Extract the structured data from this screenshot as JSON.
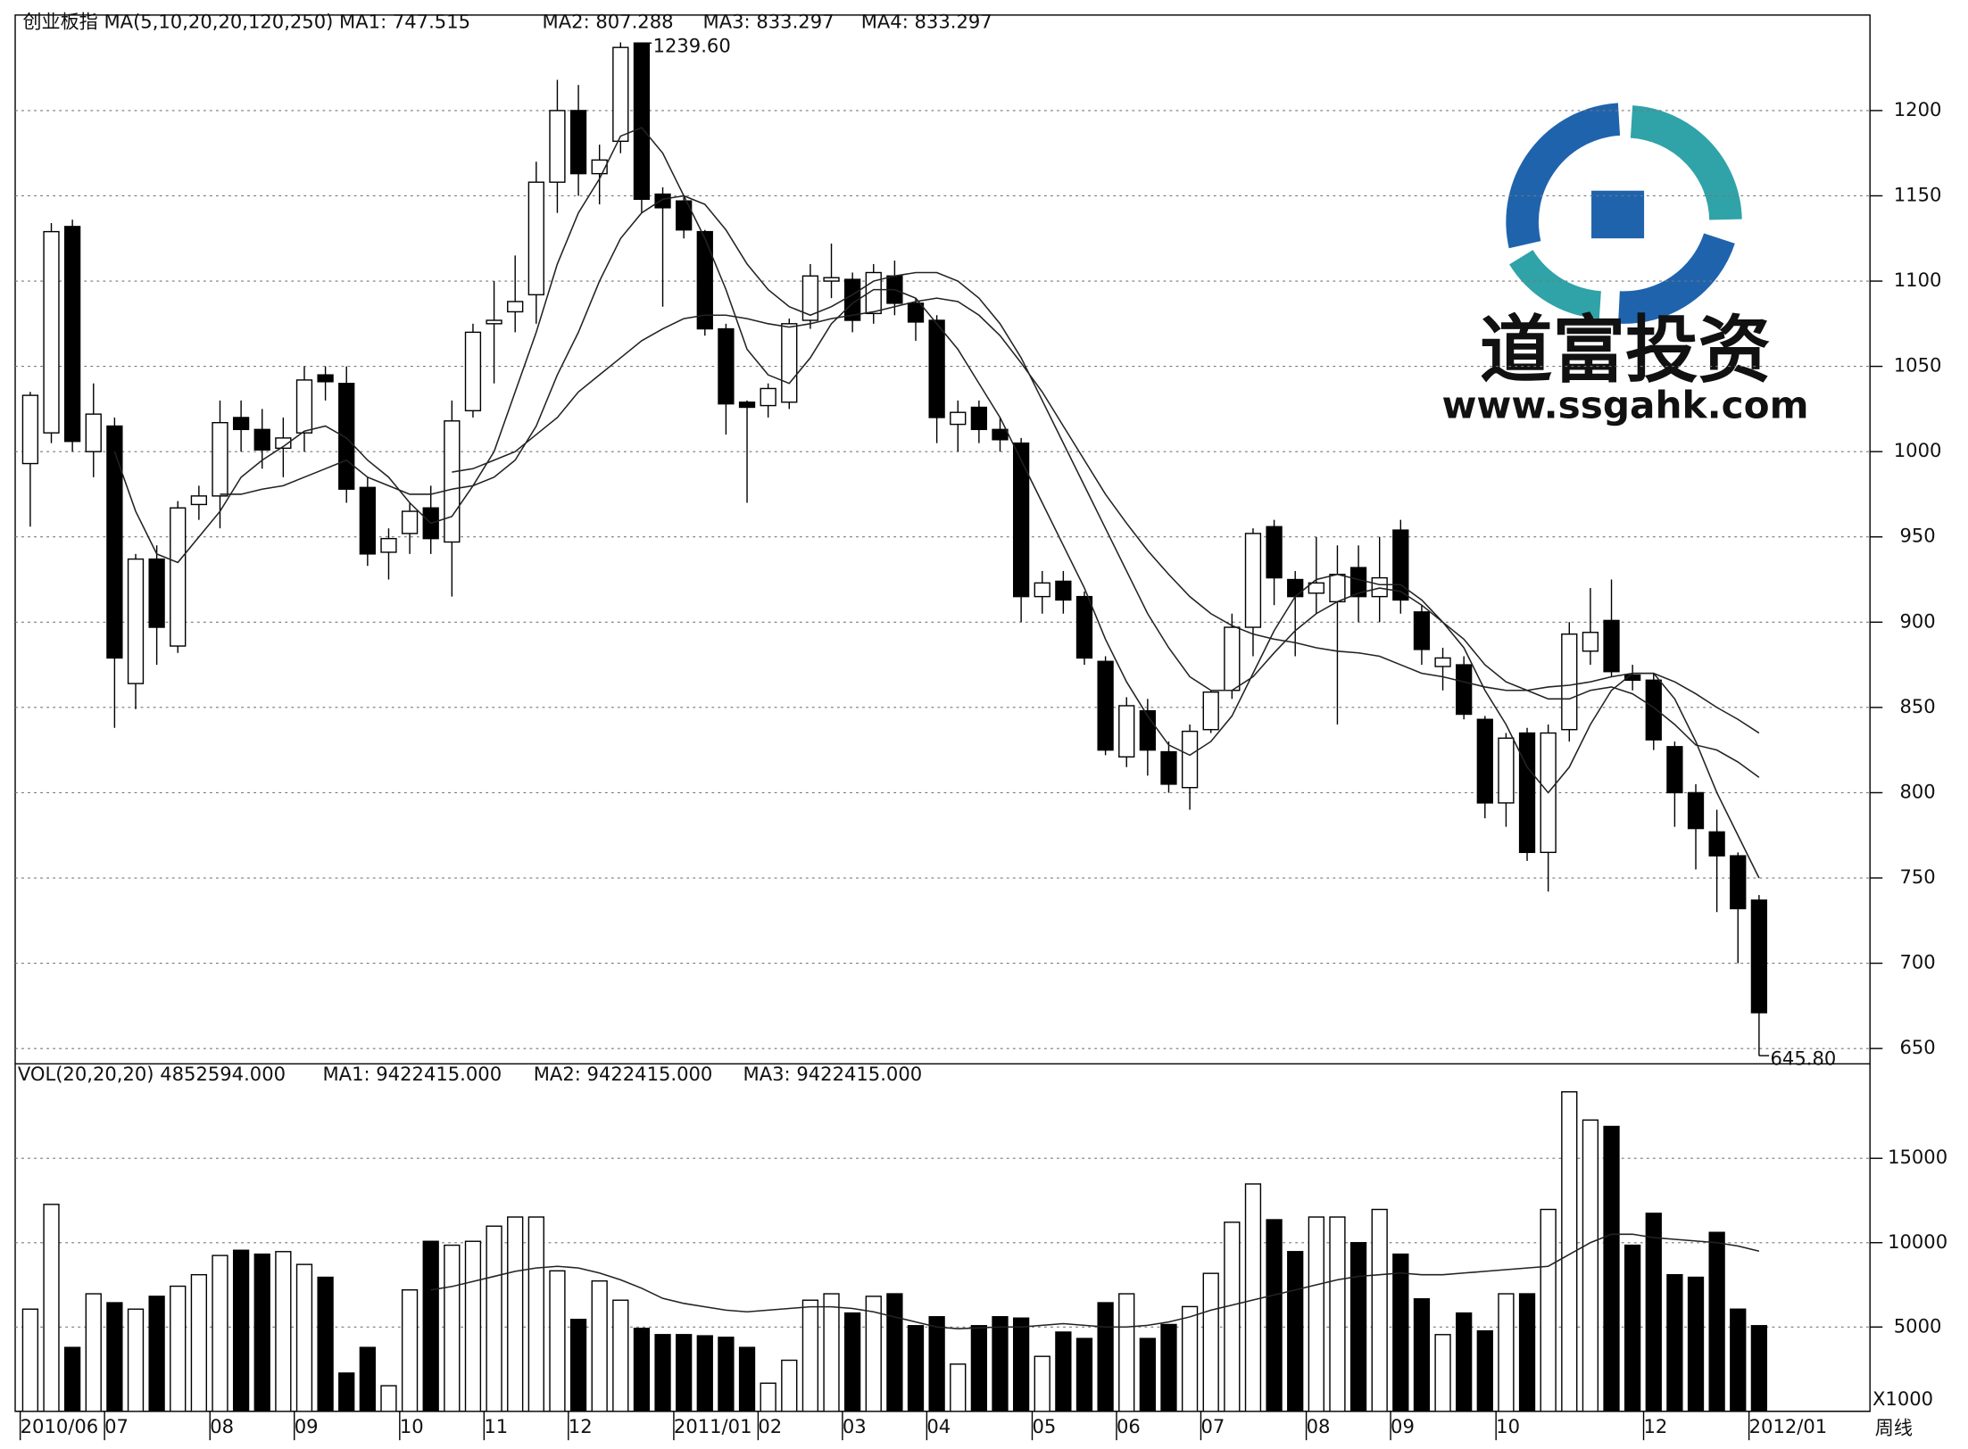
{
  "chart_data": [
    {
      "type": "candlestick",
      "title_texts": [
        "创业板指 MA(5,10,20,20,120,250) MA1: 747.515",
        "MA2: 807.288",
        "MA3: 833.297",
        "MA4: 833.297"
      ],
      "open": [
        993,
        1011,
        1132,
        1000,
        1015,
        864,
        937,
        886,
        969,
        974,
        1020,
        1013,
        1002,
        1011,
        1045,
        1040,
        979,
        941,
        952,
        967,
        947,
        1024,
        1075,
        1082,
        1092,
        1158,
        1200,
        1163,
        1182,
        1239.6,
        1151,
        1147,
        1129,
        1072,
        1029,
        1027,
        1029,
        1077,
        1100,
        1101,
        1081,
        1103,
        1087,
        1077,
        1016,
        1026,
        1013,
        1005,
        915,
        924,
        915,
        877,
        821,
        848,
        824,
        803,
        837,
        860,
        897,
        956,
        925,
        917,
        912,
        932,
        915,
        954,
        906,
        874,
        875,
        843,
        794,
        835,
        765,
        837,
        883,
        901,
        869,
        866,
        827,
        800,
        777,
        763,
        737
      ],
      "high": [
        1035,
        1134,
        1136,
        1040,
        1020,
        940,
        945,
        971,
        980,
        1030,
        1030,
        1025,
        1020,
        1050,
        1050,
        1050,
        985,
        955,
        970,
        980,
        1030,
        1075,
        1100,
        1115,
        1170,
        1218,
        1215,
        1180,
        1240,
        1239.6,
        1155,
        1150,
        1130,
        1075,
        1030,
        1040,
        1078,
        1110,
        1122,
        1105,
        1110,
        1112,
        1090,
        1080,
        1030,
        1030,
        1020,
        1008,
        930,
        930,
        918,
        880,
        856,
        855,
        830,
        840,
        860,
        905,
        955,
        960,
        930,
        950,
        945,
        945,
        950,
        960,
        910,
        885,
        880,
        845,
        835,
        838,
        840,
        900,
        920,
        925,
        875,
        870,
        830,
        805,
        790,
        765,
        740
      ],
      "low": [
        956,
        1005,
        1000,
        985,
        838,
        849,
        875,
        882,
        960,
        955,
        1000,
        990,
        985,
        1000,
        1030,
        970,
        933,
        925,
        940,
        940,
        915,
        1020,
        1040,
        1070,
        1075,
        1140,
        1150,
        1145,
        1175,
        1140,
        1085,
        1125,
        1068,
        1010,
        970,
        1020,
        1025,
        1072,
        1090,
        1070,
        1075,
        1080,
        1065,
        1005,
        1000,
        1005,
        1000,
        900,
        905,
        905,
        875,
        822,
        815,
        810,
        800,
        790,
        835,
        855,
        880,
        910,
        880,
        905,
        840,
        900,
        900,
        905,
        875,
        860,
        843,
        785,
        780,
        760,
        742,
        830,
        875,
        868,
        860,
        825,
        780,
        755,
        730,
        700,
        645.8
      ],
      "close": [
        1033,
        1129,
        1006,
        1022,
        879,
        937,
        897,
        967,
        974,
        1017,
        1013,
        1001,
        1008,
        1042,
        1041,
        978,
        940,
        949,
        965,
        949,
        1018,
        1070,
        1077,
        1088,
        1158,
        1200,
        1163,
        1171,
        1237,
        1148,
        1143,
        1130,
        1072,
        1028,
        1026,
        1037,
        1075,
        1103,
        1102,
        1077,
        1105,
        1087,
        1076,
        1020,
        1023,
        1013,
        1007,
        915,
        923,
        913,
        879,
        825,
        851,
        825,
        805,
        836,
        859,
        897,
        952,
        926,
        915,
        923,
        928,
        915,
        926,
        913,
        884,
        879,
        846,
        794,
        832,
        765,
        835,
        893,
        894,
        871,
        866,
        831,
        800,
        779,
        763,
        732,
        671
      ],
      "lines": [
        {
          "values": [
            null,
            null,
            null,
            null,
            1000,
            965,
            940,
            935,
            950,
            965,
            985,
            995,
            1003,
            1012,
            1015,
            1008,
            995,
            985,
            970,
            958,
            962,
            980,
            1000,
            1035,
            1070,
            1110,
            1140,
            1160,
            1185,
            1190,
            1175,
            1150,
            1125,
            1095,
            1060,
            1045,
            1040,
            1055,
            1075,
            1087,
            1095,
            1095,
            1090,
            1075,
            1060,
            1040,
            1020,
            995,
            970,
            945,
            920,
            890,
            865,
            845,
            828,
            822,
            830,
            845,
            870,
            895,
            915,
            925,
            928,
            925,
            922,
            922,
            913,
            900,
            885,
            860,
            840,
            815,
            800,
            815,
            840,
            860,
            870,
            870,
            855,
            830,
            800,
            775,
            750
          ]
        },
        {
          "values": [
            null,
            null,
            null,
            null,
            null,
            null,
            null,
            null,
            null,
            975,
            975,
            978,
            980,
            985,
            990,
            995,
            985,
            980,
            975,
            975,
            978,
            980,
            985,
            995,
            1015,
            1045,
            1070,
            1100,
            1125,
            1140,
            1148,
            1150,
            1145,
            1130,
            1110,
            1095,
            1085,
            1080,
            1085,
            1092,
            1100,
            1103,
            1105,
            1105,
            1100,
            1090,
            1075,
            1055,
            1030,
            1005,
            980,
            955,
            930,
            905,
            885,
            868,
            860,
            860,
            868,
            882,
            895,
            905,
            912,
            917,
            920,
            918,
            910,
            900,
            890,
            875,
            865,
            860,
            855,
            855,
            860,
            862,
            858,
            850,
            840,
            828,
            825,
            818,
            809
          ]
        },
        {
          "values": [
            null,
            null,
            null,
            null,
            null,
            null,
            null,
            null,
            null,
            null,
            null,
            null,
            null,
            null,
            null,
            null,
            null,
            null,
            null,
            null,
            988,
            990,
            995,
            1000,
            1010,
            1020,
            1035,
            1045,
            1055,
            1065,
            1072,
            1078,
            1080,
            1080,
            1078,
            1075,
            1073,
            1075,
            1078,
            1080,
            1082,
            1085,
            1088,
            1090,
            1088,
            1080,
            1068,
            1052,
            1035,
            1015,
            995,
            975,
            958,
            942,
            928,
            915,
            905,
            898,
            893,
            890,
            888,
            885,
            883,
            882,
            880,
            875,
            870,
            868,
            865,
            862,
            860,
            860,
            862,
            863,
            865,
            868,
            870,
            870,
            865,
            858,
            850,
            843,
            835
          ]
        }
      ],
      "annotations": [
        {
          "label": "1239.60",
          "value": 1239.6
        },
        {
          "label": "645.80",
          "value": 645.8
        }
      ],
      "ylim": [
        641,
        1256
      ],
      "yticks": [
        650,
        700,
        750,
        800,
        850,
        900,
        950,
        1000,
        1050,
        1100,
        1150,
        1200
      ],
      "grid": true
    },
    {
      "type": "bar",
      "title_texts": [
        "VOL(20,20,20) 4852594.000",
        "MA1: 9422415.000",
        "MA2: 9422415.000",
        "MA3: 9422415.000"
      ],
      "categories": [
        "2010/06",
        null,
        null,
        null,
        "07",
        null,
        null,
        null,
        null,
        "08",
        null,
        null,
        null,
        "09",
        null,
        null,
        null,
        null,
        "10",
        null,
        null,
        null,
        "11",
        null,
        null,
        null,
        "12",
        null,
        null,
        null,
        null,
        "2011/01",
        null,
        null,
        null,
        "02",
        null,
        null,
        null,
        "03",
        null,
        null,
        null,
        "04",
        null,
        null,
        null,
        null,
        "05",
        null,
        null,
        null,
        "06",
        null,
        null,
        null,
        "07",
        null,
        null,
        null,
        null,
        "08",
        null,
        null,
        null,
        "09",
        null,
        null,
        null,
        null,
        "10",
        null,
        null,
        null,
        null,
        null,
        null,
        "12",
        null,
        null,
        null,
        null,
        "2012/01"
      ],
      "values": [
        6060,
        12270,
        3790,
        6970,
        6440,
        6060,
        6820,
        7420,
        8100,
        9240,
        9550,
        9320,
        9470,
        8710,
        7950,
        2270,
        3790,
        1520,
        7200,
        10080,
        9850,
        10080,
        10980,
        11520,
        11520,
        8330,
        5450,
        7730,
        6590,
        4920,
        4550,
        4550,
        4480,
        4390,
        3790,
        1670,
        3030,
        6590,
        6970,
        5830,
        6820,
        6970,
        5080,
        5610,
        2800,
        5080,
        5610,
        5530,
        3260,
        4700,
        4320,
        6440,
        6970,
        4320,
        5150,
        6210,
        8180,
        11210,
        13480,
        11360,
        9470,
        11520,
        11520,
        10000,
        11970,
        9320,
        6670,
        4550,
        5830,
        4770,
        6970,
        6970,
        11970,
        18940,
        17270,
        16890,
        9850,
        11740,
        8100,
        7950,
        10610,
        6060,
        5080
      ],
      "lines": [
        {
          "values": [
            null,
            null,
            null,
            null,
            null,
            null,
            null,
            null,
            null,
            null,
            null,
            null,
            null,
            null,
            null,
            null,
            null,
            null,
            null,
            7200,
            7400,
            7700,
            8000,
            8300,
            8500,
            8600,
            8500,
            8200,
            7800,
            7300,
            6700,
            6400,
            6200,
            6000,
            5900,
            6000,
            6100,
            6200,
            6200,
            6100,
            5900,
            5600,
            5300,
            5000,
            4900,
            4950,
            5000,
            5000,
            5100,
            5200,
            5100,
            5000,
            5000,
            5100,
            5300,
            5600,
            6000,
            6300,
            6600,
            6900,
            7200,
            7500,
            7800,
            8000,
            8100,
            8200,
            8100,
            8100,
            8200,
            8300,
            8400,
            8500,
            8600,
            9300,
            10000,
            10500,
            10500,
            10300,
            10200,
            10100,
            10000,
            9800,
            9500
          ]
        }
      ],
      "ylim": [
        0,
        20600
      ],
      "yticks": [
        5000,
        10000,
        15000
      ],
      "unit_label": "X1000",
      "period_label": "周线",
      "grid": true
    }
  ],
  "watermark": {
    "name": "道富投资",
    "url": "www.ssgahk.com"
  }
}
